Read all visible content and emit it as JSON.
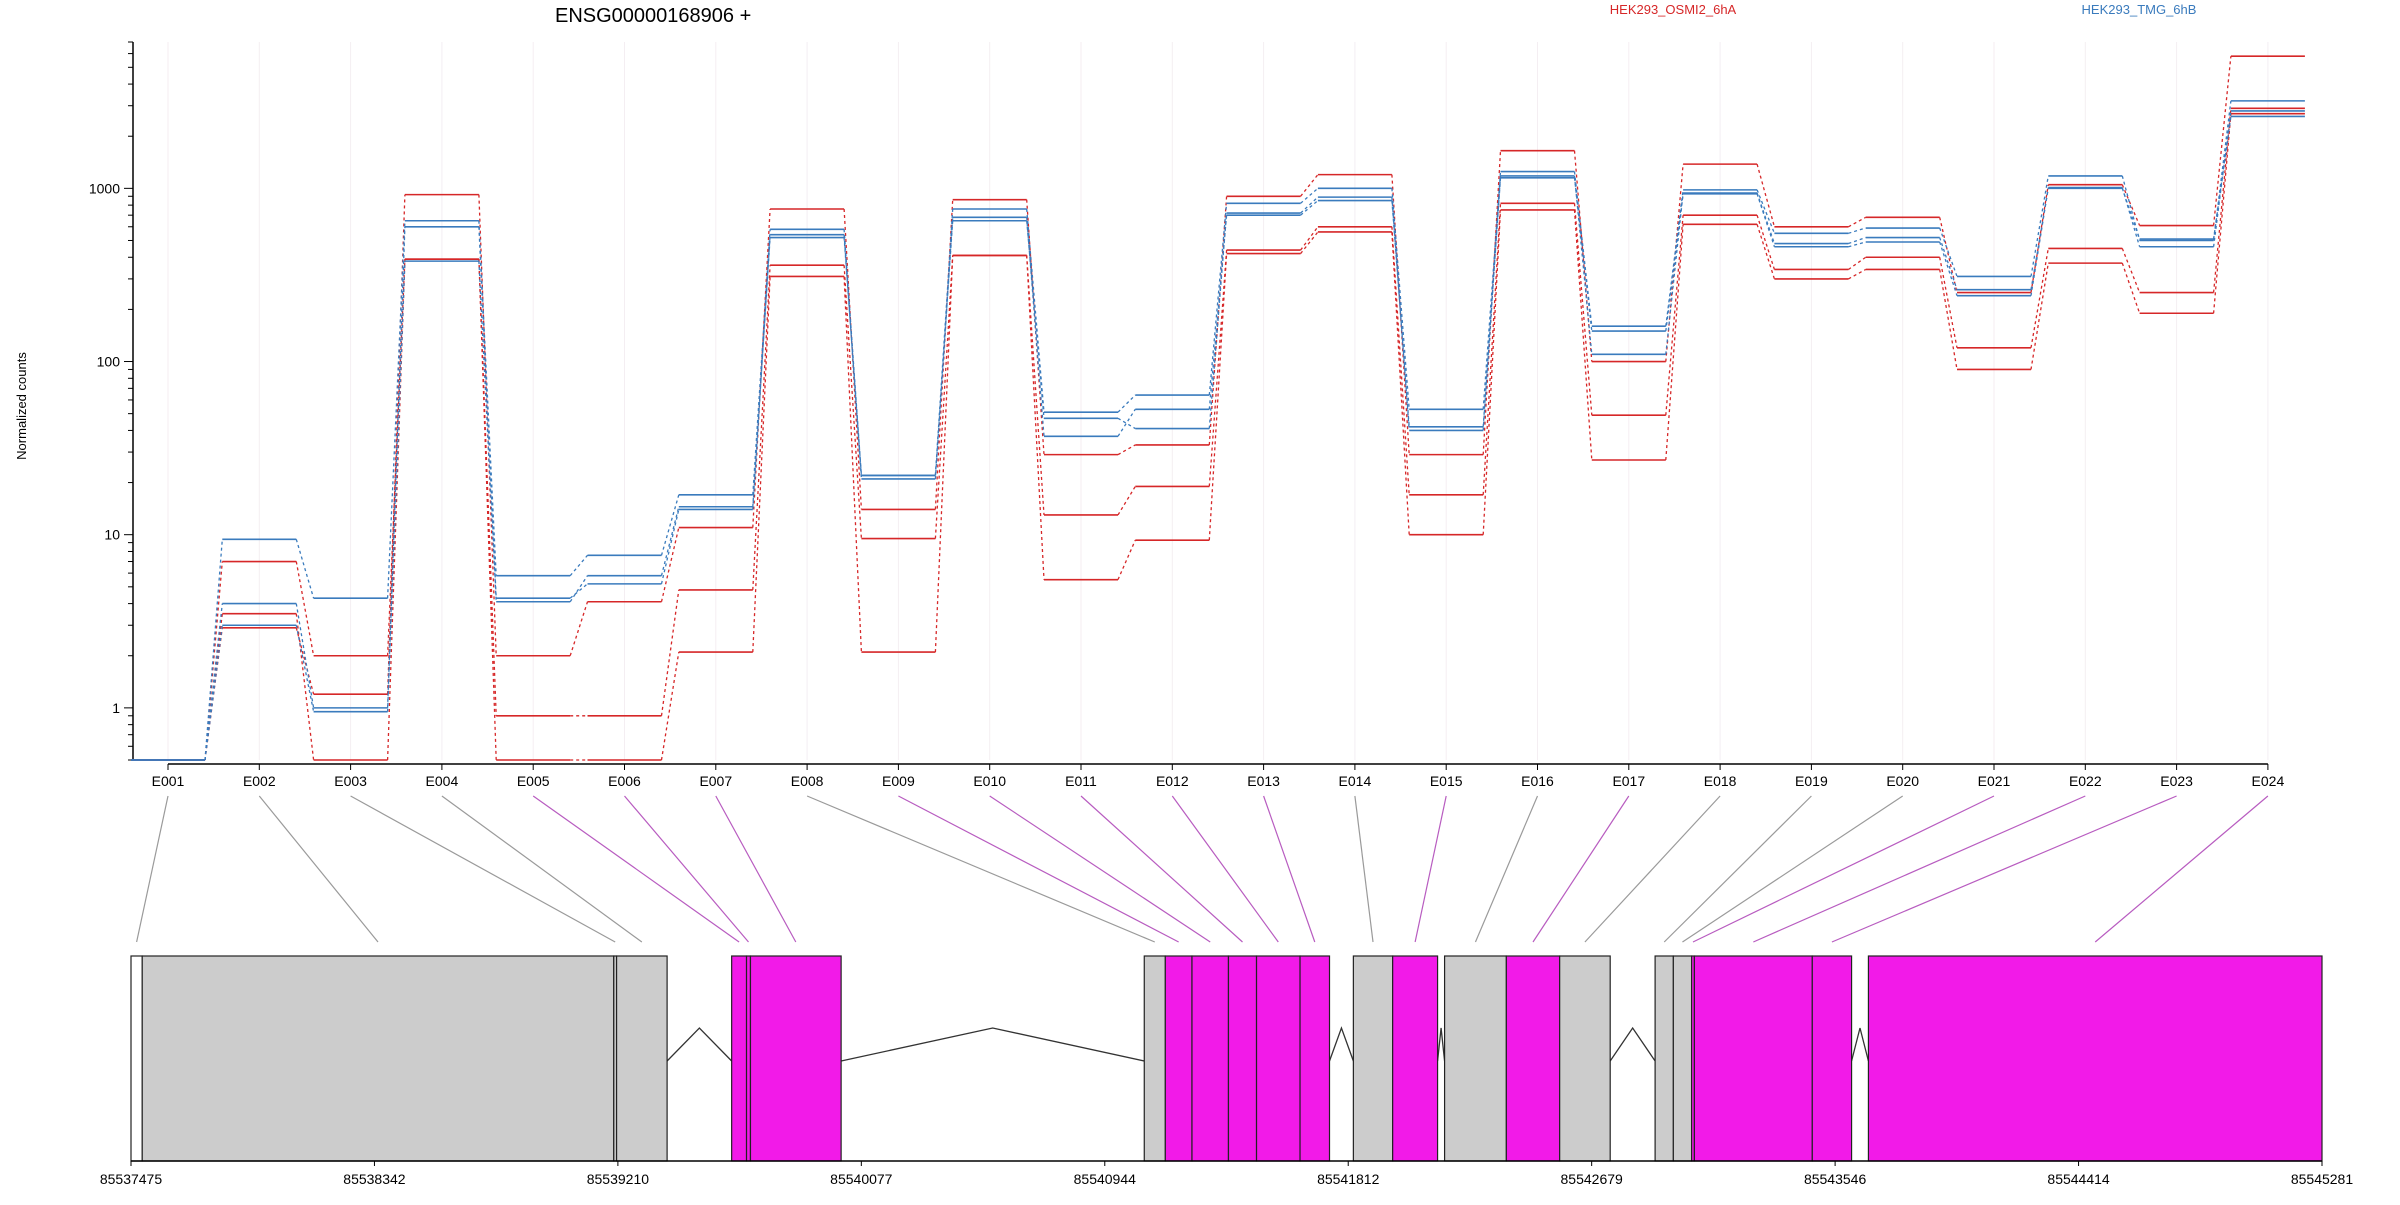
{
  "chart_data": {
    "type": "line",
    "title": "ENSG00000168906 +",
    "ylabel": "Normalized counts",
    "xlabel": "",
    "yscale": "log",
    "ylim": [
      0.5,
      7000
    ],
    "yticks": [
      {
        "value": 1,
        "label": "1"
      },
      {
        "value": 10,
        "label": "10"
      },
      {
        "value": 100,
        "label": "100"
      },
      {
        "value": 1000,
        "label": "1000"
      }
    ],
    "grid": true,
    "legend_placement": "top",
    "categories": [
      "E001",
      "E002",
      "E003",
      "E004",
      "E005",
      "E006",
      "E007",
      "E008",
      "E009",
      "E010",
      "E011",
      "E012",
      "E013",
      "E014",
      "E015",
      "E016",
      "E017",
      "E018",
      "E019",
      "E020",
      "E021",
      "E022",
      "E023",
      "E024"
    ],
    "series": [
      {
        "name": "HEK293_OSMI2_6hA",
        "color": "#d62728",
        "values": [
          0.5,
          2.9,
          1.2,
          920,
          2.0,
          4.1,
          11.0,
          760,
          14.0,
          860,
          29.0,
          33.0,
          900,
          1200,
          29.0,
          1650,
          100,
          1380,
          600,
          680,
          250,
          1050,
          610,
          5800
        ]
      },
      {
        "name": "",
        "color": "#d62728",
        "values": [
          0.5,
          7.0,
          2.0,
          390,
          0.9,
          0.9,
          4.8,
          360,
          9.5,
          410,
          13.0,
          19.0,
          440,
          600,
          17.0,
          820,
          49.0,
          700,
          340,
          400,
          120,
          450,
          250,
          2900
        ]
      },
      {
        "name": "",
        "color": "#d62728",
        "values": [
          0.5,
          3.5,
          0.5,
          390,
          0.5,
          0.5,
          2.1,
          310,
          2.1,
          410,
          5.5,
          9.3,
          420,
          560,
          10.0,
          750,
          27.0,
          620,
          300,
          340,
          90,
          370,
          190,
          2700
        ]
      },
      {
        "name": "HEK293_TMG_6hB",
        "color": "#3a7bbd",
        "values": [
          0.5,
          9.4,
          4.3,
          650,
          5.8,
          7.6,
          17.0,
          580,
          22.0,
          760,
          51.0,
          64.0,
          820,
          1000,
          53.0,
          1250,
          160,
          980,
          550,
          590,
          310,
          1180,
          500,
          3200
        ]
      },
      {
        "name": "",
        "color": "#3a7bbd",
        "values": [
          0.5,
          4.0,
          1.0,
          600,
          4.3,
          5.2,
          14.0,
          540,
          21.0,
          680,
          37.0,
          53.0,
          700,
          850,
          42.0,
          1150,
          150,
          930,
          460,
          490,
          240,
          1010,
          460,
          2800
        ]
      },
      {
        "name": "",
        "color": "#3a7bbd",
        "values": [
          0.5,
          3.0,
          0.95,
          380,
          4.1,
          5.8,
          14.5,
          520,
          22.0,
          650,
          47.0,
          41.0,
          720,
          890,
          40.0,
          1180,
          110,
          940,
          480,
          520,
          260,
          1000,
          510,
          2600
        ]
      }
    ],
    "genome_axis": {
      "tick_labels": [
        "85537475",
        "85538342",
        "85539210",
        "85540077",
        "85540944",
        "85541812",
        "85542679",
        "85543546",
        "85544414",
        "85545281"
      ],
      "min": 85537475,
      "max": 85545281
    },
    "exons": [
      {
        "id": "E001",
        "start": 85537475,
        "end": 85537515,
        "color": "#ffffff"
      },
      {
        "id": "E002",
        "start": 85537515,
        "end": 85539195,
        "color": "#cccccc"
      },
      {
        "id": "E003",
        "start": 85539195,
        "end": 85539205,
        "color": "#cccccc"
      },
      {
        "id": "E004",
        "start": 85539205,
        "end": 85539385,
        "color": "#cccccc"
      },
      {
        "id": "E005",
        "start": 85539615,
        "end": 85539668,
        "color": "#f21ae8"
      },
      {
        "id": "E006",
        "start": 85539668,
        "end": 85539682,
        "color": "#f21ae8"
      },
      {
        "id": "E007",
        "start": 85539682,
        "end": 85540005,
        "color": "#f21ae8"
      },
      {
        "id": "E008",
        "start": 85541085,
        "end": 85541160,
        "color": "#cccccc"
      },
      {
        "id": "E009",
        "start": 85541160,
        "end": 85541255,
        "color": "#f21ae8"
      },
      {
        "id": "E010",
        "start": 85541255,
        "end": 85541385,
        "color": "#f21ae8"
      },
      {
        "id": "E011",
        "start": 85541385,
        "end": 85541485,
        "color": "#f21ae8"
      },
      {
        "id": "E012",
        "start": 85541485,
        "end": 85541640,
        "color": "#f21ae8"
      },
      {
        "id": "E013",
        "start": 85541640,
        "end": 85541745,
        "color": "#f21ae8"
      },
      {
        "id": "E014",
        "start": 85541830,
        "end": 85541970,
        "color": "#cccccc"
      },
      {
        "id": "E015",
        "start": 85541970,
        "end": 85542130,
        "color": "#f21ae8"
      },
      {
        "id": "E016",
        "start": 85542155,
        "end": 85542375,
        "color": "#cccccc"
      },
      {
        "id": "E017",
        "start": 85542375,
        "end": 85542565,
        "color": "#f21ae8"
      },
      {
        "id": "E018",
        "start": 85542565,
        "end": 85542745,
        "color": "#cccccc"
      },
      {
        "id": "E019",
        "start": 85542905,
        "end": 85542970,
        "color": "#cccccc"
      },
      {
        "id": "E020",
        "start": 85542970,
        "end": 85543035,
        "color": "#cccccc"
      },
      {
        "id": "E021",
        "start": 85543035,
        "end": 85543045,
        "color": "#f21ae8"
      },
      {
        "id": "E022",
        "start": 85543045,
        "end": 85543465,
        "color": "#f21ae8"
      },
      {
        "id": "E023",
        "start": 85543465,
        "end": 85543605,
        "color": "#f21ae8"
      },
      {
        "id": "E024",
        "start": 85543665,
        "end": 85545281,
        "color": "#f21ae8"
      }
    ]
  }
}
